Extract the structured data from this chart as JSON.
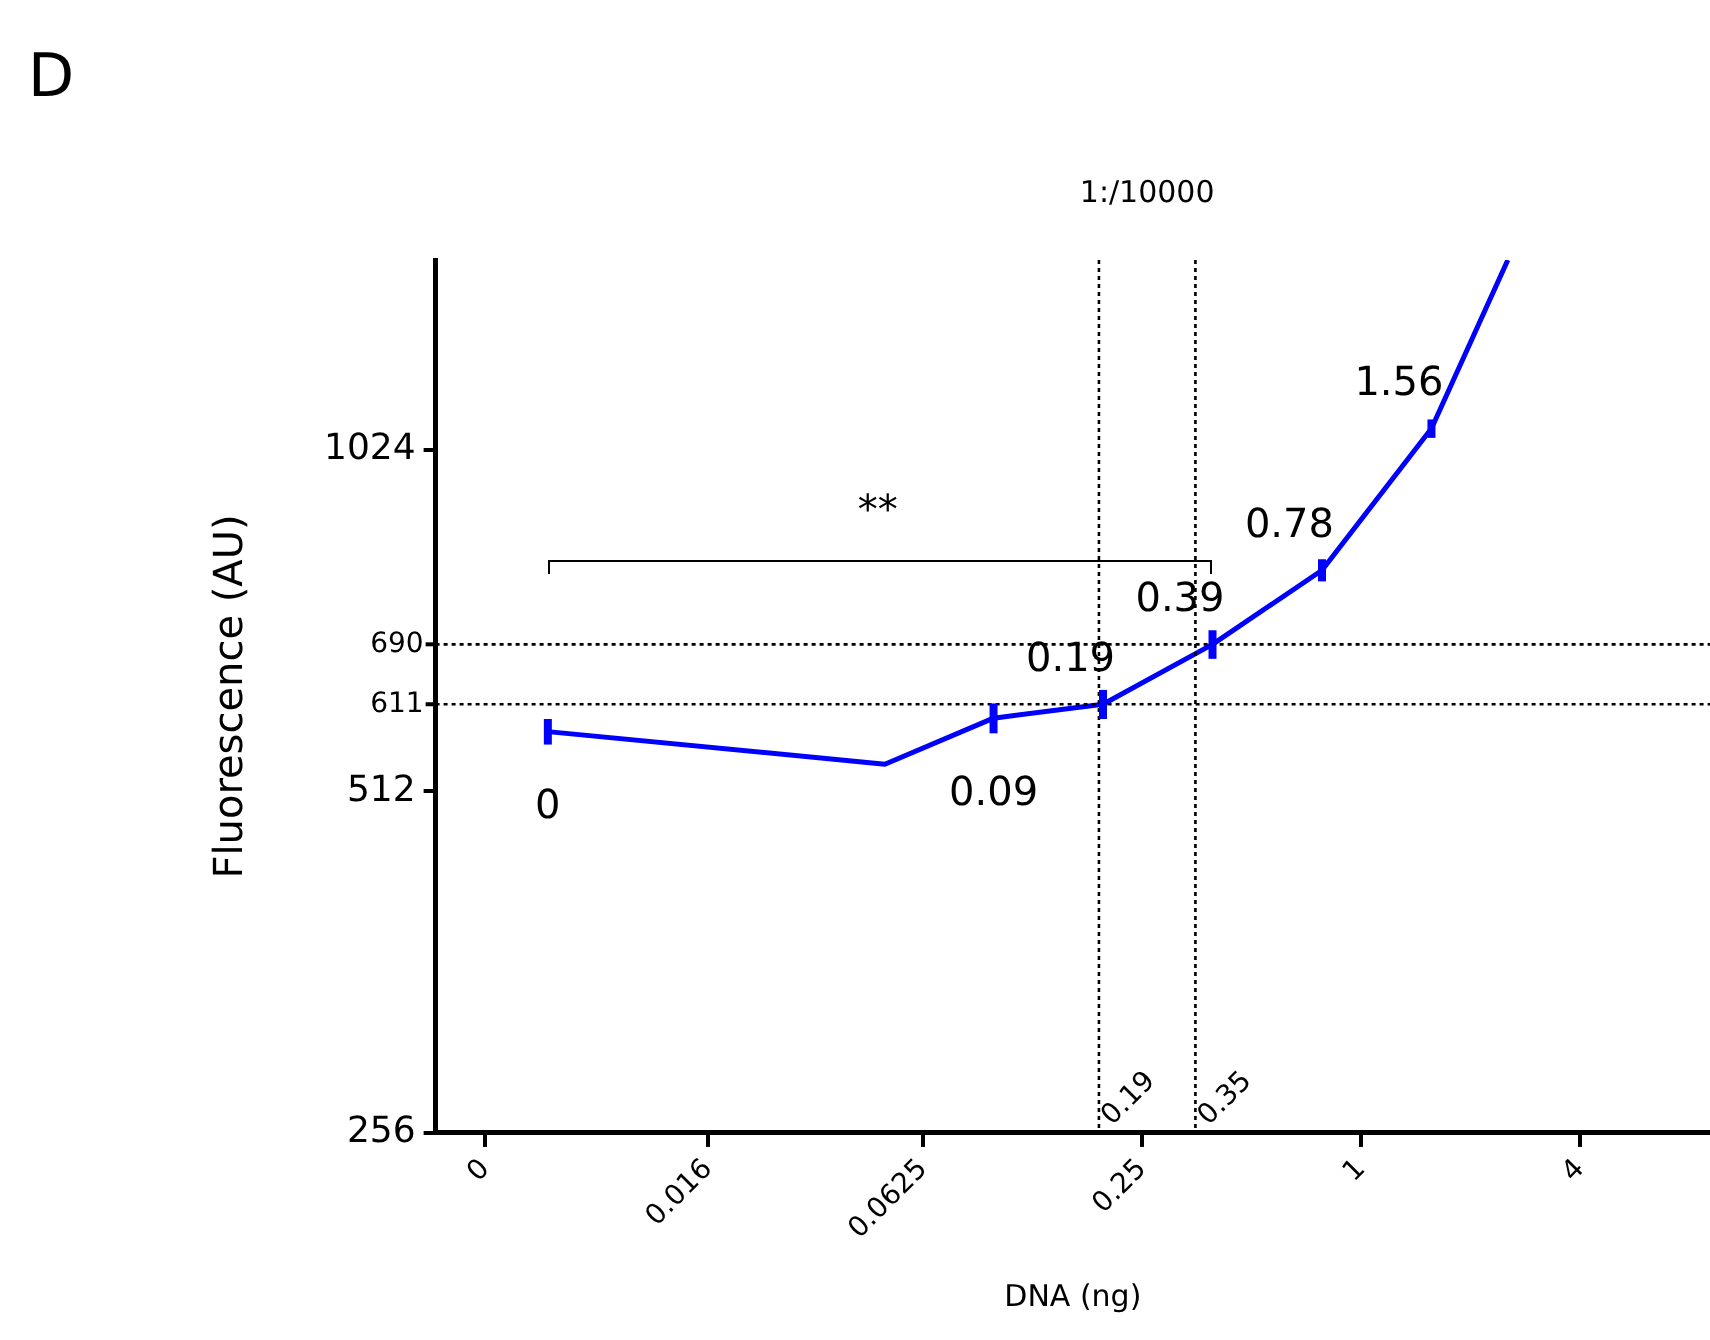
{
  "chart_data": {
    "type": "line",
    "xlabel": "DNA (ng)",
    "ylabel": "Fluorescence (AU)",
    "log": "xy",
    "grid": false,
    "legend": false,
    "marker": "none",
    "line_style": "solid",
    "xlim": [
      0.00285,
      9.1
    ],
    "xticks": [
      {
        "value": 0.00390625,
        "label": "0"
      },
      0.016,
      0.0625,
      0.25,
      1,
      4
    ],
    "ylim": [
      256,
      1505
    ],
    "yticks": [
      256,
      512,
      1024
    ],
    "series": [
      {
        "color": "#0000ff",
        "x": [
          0.0058,
          0.049,
          0.0975,
          0.195,
          0.39,
          0.78,
          1.56,
          2.53
        ],
        "values": [
          578,
          541,
          594,
          611,
          690,
          802,
          1069,
          1505
        ],
        "errors": [
          15,
          null,
          18,
          18,
          20,
          18,
          20,
          null
        ]
      }
    ],
    "ref_lines": [
      {
        "axis": "x",
        "value": 0.19,
        "label": "0.19",
        "line_style": "dotted"
      },
      {
        "axis": "x",
        "value": 0.35,
        "label": "0.35",
        "line_style": "dotted"
      },
      {
        "axis": "y",
        "value": 611,
        "label": "611",
        "line_style": "dotted"
      },
      {
        "axis": "y",
        "value": 690,
        "label": "690",
        "line_style": "dotted"
      }
    ],
    "annotations": [
      "D",
      "1:/10000",
      "**",
      {
        "text": "0",
        "x": 0.0058,
        "y": 578
      },
      {
        "text": "0.09",
        "x": 0.0975,
        "y": 594
      },
      {
        "text": "0.19",
        "x": 0.195,
        "y": 611
      },
      {
        "text": "0.39",
        "x": 0.39,
        "y": 690
      },
      {
        "text": "0.78",
        "x": 0.78,
        "y": 802
      },
      {
        "text": "1.56",
        "x": 1.56,
        "y": 1069
      }
    ]
  }
}
